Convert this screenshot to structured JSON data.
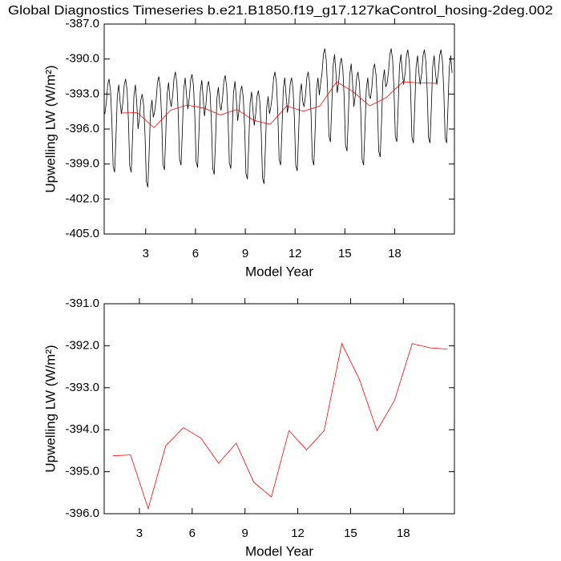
{
  "chart_data": [
    {
      "type": "line",
      "title": "Global Diagnostics Timeseries b.e21.B1850.f19_g17.127kaControl_hosing-2deg.002",
      "xlabel": "Model Year",
      "ylabel": "Upwelling LW (W/m²)",
      "xlim": [
        0.5,
        21.6
      ],
      "xticks": [
        3,
        6,
        9,
        12,
        15,
        18
      ],
      "ylim": [
        -405,
        -387
      ],
      "yticks": [
        {
          "value": -405,
          "label": "-405.0"
        },
        {
          "value": -402,
          "label": "-402.0"
        },
        {
          "value": -399,
          "label": "-399.0"
        },
        {
          "value": -396,
          "label": "-396.0"
        },
        {
          "value": -393,
          "label": "-393.0"
        },
        {
          "value": -390,
          "label": "-390.0"
        },
        {
          "value": -387,
          "label": "-387.0"
        }
      ],
      "series": [
        {
          "color": "#000000",
          "x": [
            0.54,
            0.63,
            0.71,
            0.79,
            0.88,
            0.96,
            1.04,
            1.13,
            1.21,
            1.29,
            1.38,
            1.46,
            1.54,
            1.63,
            1.71,
            1.79,
            1.88,
            1.96,
            2.04,
            2.13,
            2.21,
            2.29,
            2.38,
            2.46,
            2.54,
            2.63,
            2.71,
            2.79,
            2.88,
            2.96,
            3.04,
            3.13,
            3.21,
            3.29,
            3.38,
            3.46,
            3.54,
            3.63,
            3.71,
            3.79,
            3.88,
            3.96,
            4.04,
            4.13,
            4.21,
            4.29,
            4.38,
            4.46,
            4.54,
            4.63,
            4.71,
            4.79,
            4.88,
            4.96,
            5.04,
            5.13,
            5.21,
            5.29,
            5.38,
            5.46,
            5.54,
            5.63,
            5.71,
            5.79,
            5.88,
            5.96,
            6.04,
            6.13,
            6.21,
            6.29,
            6.38,
            6.46,
            6.54,
            6.63,
            6.71,
            6.79,
            6.88,
            6.96,
            7.04,
            7.13,
            7.21,
            7.29,
            7.38,
            7.46,
            7.54,
            7.63,
            7.71,
            7.79,
            7.88,
            7.96,
            8.04,
            8.13,
            8.21,
            8.29,
            8.38,
            8.46,
            8.54,
            8.63,
            8.71,
            8.79,
            8.88,
            8.96,
            9.04,
            9.13,
            9.21,
            9.29,
            9.38,
            9.46,
            9.54,
            9.63,
            9.71,
            9.79,
            9.88,
            9.96,
            10.04,
            10.13,
            10.21,
            10.29,
            10.38,
            10.46,
            10.54,
            10.63,
            10.71,
            10.79,
            10.88,
            10.96,
            11.04,
            11.13,
            11.21,
            11.29,
            11.38,
            11.46,
            11.54,
            11.63,
            11.71,
            11.79,
            11.88,
            11.96,
            12.04,
            12.13,
            12.21,
            12.29,
            12.38,
            12.46,
            12.54,
            12.63,
            12.71,
            12.79,
            12.88,
            12.96,
            13.04,
            13.13,
            13.21,
            13.29,
            13.38,
            13.46,
            13.54,
            13.63,
            13.71,
            13.79,
            13.88,
            13.96,
            14.04,
            14.13,
            14.21,
            14.29,
            14.38,
            14.46,
            14.54,
            14.63,
            14.71,
            14.79,
            14.88,
            14.96,
            15.04,
            15.13,
            15.21,
            15.29,
            15.38,
            15.46,
            15.54,
            15.63,
            15.71,
            15.79,
            15.88,
            15.96,
            16.04,
            16.13,
            16.21,
            16.29,
            16.38,
            16.46,
            16.54,
            16.63,
            16.71,
            16.79,
            16.88,
            16.96,
            17.04,
            17.13,
            17.21,
            17.29,
            17.38,
            17.46,
            17.54,
            17.63,
            17.71,
            17.79,
            17.88,
            17.96,
            18.04,
            18.13,
            18.21,
            18.29,
            18.38,
            18.46,
            18.54,
            18.63,
            18.71,
            18.79,
            18.88,
            18.96,
            19.04,
            19.13,
            19.21,
            19.29,
            19.38,
            19.46,
            19.54,
            19.63,
            19.71,
            19.79,
            19.88,
            19.96,
            20.04,
            20.13,
            20.21,
            20.29,
            20.38,
            20.46,
            20.54,
            20.63,
            20.71,
            20.79,
            20.88,
            20.96,
            21.04,
            21.13,
            21.21,
            21.29,
            21.38,
            21.46
          ],
          "values": [
            -394.7,
            -393.7,
            -392.2,
            -391.7,
            -392.7,
            -395.2,
            -399.2,
            -399.7,
            -396.7,
            -393.2,
            -392.2,
            -393.7,
            -394.7,
            -393.7,
            -392.2,
            -391.7,
            -392.7,
            -395.2,
            -399.2,
            -399.7,
            -396.7,
            -393.2,
            -392.2,
            -393.7,
            -396.0,
            -395.0,
            -393.5,
            -393.0,
            -394.0,
            -396.5,
            -400.5,
            -401.0,
            -398.0,
            -394.5,
            -393.5,
            -395.0,
            -394.5,
            -393.5,
            -392.0,
            -391.5,
            -392.5,
            -395.0,
            -399.0,
            -399.5,
            -396.5,
            -393.0,
            -392.0,
            -393.5,
            -394.1,
            -393.1,
            -391.6,
            -391.1,
            -392.1,
            -394.6,
            -398.6,
            -399.1,
            -396.1,
            -392.6,
            -391.6,
            -393.1,
            -394.3,
            -393.3,
            -391.8,
            -391.3,
            -392.3,
            -394.8,
            -398.8,
            -399.3,
            -396.3,
            -392.8,
            -391.8,
            -393.3,
            -394.9,
            -393.9,
            -392.4,
            -391.9,
            -392.9,
            -395.4,
            -399.4,
            -399.9,
            -396.9,
            -393.4,
            -392.4,
            -393.9,
            -394.4,
            -393.4,
            -391.9,
            -391.4,
            -392.4,
            -394.9,
            -398.9,
            -399.4,
            -396.4,
            -392.9,
            -391.9,
            -393.4,
            -395.3,
            -394.3,
            -392.8,
            -392.3,
            -393.3,
            -395.8,
            -399.8,
            -400.3,
            -397.3,
            -393.8,
            -392.8,
            -394.3,
            -395.7,
            -394.7,
            -393.2,
            -392.7,
            -393.7,
            -396.2,
            -400.2,
            -400.7,
            -397.7,
            -394.2,
            -393.2,
            -394.7,
            -394.1,
            -393.1,
            -391.6,
            -391.1,
            -392.1,
            -394.6,
            -398.6,
            -399.1,
            -396.1,
            -392.6,
            -391.6,
            -393.1,
            -394.6,
            -393.6,
            -392.1,
            -391.6,
            -392.6,
            -395.1,
            -399.1,
            -399.6,
            -396.6,
            -393.1,
            -392.1,
            -393.6,
            -394.1,
            -393.1,
            -391.6,
            -391.1,
            -392.1,
            -394.6,
            -398.6,
            -399.1,
            -396.1,
            -392.6,
            -391.6,
            -393.1,
            -392.1,
            -391.1,
            -389.6,
            -389.1,
            -390.1,
            -392.6,
            -396.6,
            -397.1,
            -394.1,
            -390.6,
            -389.6,
            -391.1,
            -392.9,
            -391.9,
            -390.4,
            -389.9,
            -390.9,
            -393.4,
            -397.4,
            -397.9,
            -394.9,
            -391.4,
            -390.4,
            -391.9,
            -394.1,
            -393.1,
            -391.6,
            -391.1,
            -392.1,
            -394.6,
            -398.6,
            -399.1,
            -396.1,
            -392.6,
            -391.6,
            -393.1,
            -393.4,
            -392.4,
            -390.9,
            -390.4,
            -391.4,
            -393.9,
            -397.9,
            -398.4,
            -395.4,
            -391.9,
            -390.9,
            -392.4,
            -392.1,
            -391.1,
            -389.6,
            -389.1,
            -390.1,
            -392.6,
            -396.6,
            -397.1,
            -394.1,
            -390.6,
            -389.6,
            -391.1,
            -392.2,
            -391.2,
            -389.7,
            -389.2,
            -390.2,
            -392.7,
            -396.7,
            -397.2,
            -394.2,
            -390.7,
            -389.7,
            -391.2,
            -392.2,
            -391.2,
            -389.7,
            -389.2,
            -390.2,
            -392.7,
            -396.7,
            -397.2,
            -394.2,
            -390.7,
            -389.7,
            -391.2,
            -392.2,
            -391.2,
            -389.7,
            -389.2,
            -390.2,
            -392.7,
            -396.7,
            -397.2,
            -394.2,
            -390.7,
            -389.7,
            -391.2
          ]
        },
        {
          "color": "#ff0000",
          "x": [
            1.5,
            2.5,
            3.5,
            4.5,
            5.5,
            6.5,
            7.5,
            8.5,
            9.5,
            10.5,
            11.5,
            12.5,
            13.5,
            14.5,
            15.5,
            16.5,
            17.5,
            18.5,
            19.5,
            20.5
          ],
          "values": [
            -394.62,
            -394.6,
            -395.88,
            -394.38,
            -393.95,
            -394.2,
            -394.8,
            -394.32,
            -395.25,
            -395.6,
            -394.02,
            -394.48,
            -394.02,
            -391.95,
            -392.8,
            -394.02,
            -393.3,
            -391.95,
            -392.05,
            -392.08
          ]
        }
      ]
    },
    {
      "type": "line",
      "xlabel": "Model Year",
      "ylabel": "Upwelling LW (W/m²)",
      "xlim": [
        1,
        20.9
      ],
      "xticks": [
        3,
        6,
        9,
        12,
        15,
        18
      ],
      "ylim": [
        -396,
        -391
      ],
      "yticks": [
        {
          "value": -396,
          "label": "-396.0"
        },
        {
          "value": -395,
          "label": "-395.0"
        },
        {
          "value": -394,
          "label": "-394.0"
        },
        {
          "value": -393,
          "label": "-393.0"
        },
        {
          "value": -392,
          "label": "-392.0"
        },
        {
          "value": -391,
          "label": "-391.0"
        }
      ],
      "series": [
        {
          "color": "#ff0000",
          "x": [
            1.5,
            2.5,
            3.5,
            4.5,
            5.5,
            6.5,
            7.5,
            8.5,
            9.5,
            10.5,
            11.5,
            12.5,
            13.5,
            14.5,
            15.5,
            16.5,
            17.5,
            18.5,
            19.5,
            20.5
          ],
          "values": [
            -394.62,
            -394.6,
            -395.88,
            -394.38,
            -393.95,
            -394.2,
            -394.8,
            -394.32,
            -395.25,
            -395.6,
            -394.02,
            -394.48,
            -394.02,
            -391.95,
            -392.8,
            -394.02,
            -393.3,
            -391.95,
            -392.05,
            -392.08
          ]
        }
      ]
    }
  ]
}
